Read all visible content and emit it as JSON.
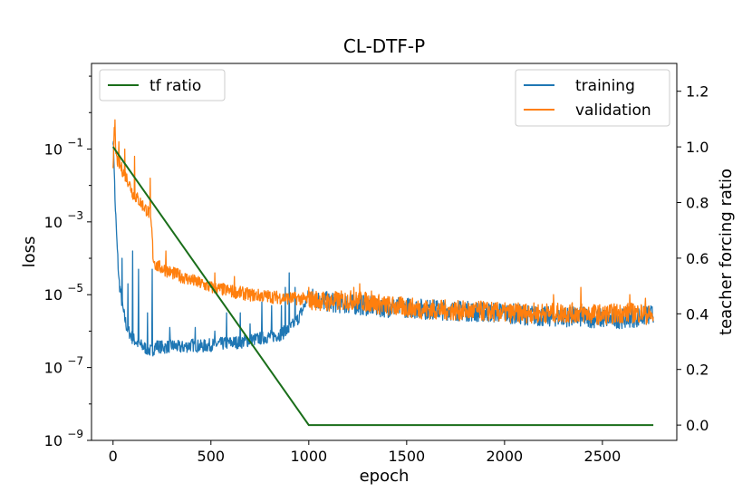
{
  "chart_data": {
    "type": "line",
    "title": "CL-DTF-P",
    "xlabel": "epoch",
    "ylabel": "loss",
    "y2label": "teacher forcing ratio",
    "xlim": [
      -110,
      2880
    ],
    "xticks": [
      0,
      500,
      1000,
      1500,
      2000,
      2500
    ],
    "yscale": "log",
    "ylim_log10": [
      -9,
      1.35
    ],
    "yticks_log10": [
      -9,
      -7,
      -5,
      -3,
      -1
    ],
    "ytick_labels": [
      "10",
      "10",
      "10",
      "10",
      "10"
    ],
    "ytick_exponents": [
      "−9",
      "−7",
      "−5",
      "−3",
      "−1"
    ],
    "y2lim": [
      -0.055,
      1.3
    ],
    "y2ticks": [
      0.0,
      0.2,
      0.4,
      0.6,
      0.8,
      1.0,
      1.2
    ],
    "y2tick_labels": [
      "0.0",
      "0.2",
      "0.4",
      "0.6",
      "0.8",
      "1.0",
      "1.2"
    ],
    "grid": false,
    "legend_left": {
      "placement": "upper-left",
      "entries": [
        "tf ratio"
      ]
    },
    "legend_right": {
      "placement": "upper-right",
      "entries": [
        "training",
        "validation"
      ]
    },
    "series": [
      {
        "name": "training",
        "axis": "left",
        "color": "#1f77b4",
        "x": [
          0,
          5,
          10,
          20,
          30,
          50,
          70,
          100,
          130,
          160,
          180,
          195,
          205,
          220,
          260,
          300,
          350,
          400,
          450,
          500,
          550,
          600,
          650,
          700,
          750,
          800,
          850,
          900,
          940,
          970,
          1000,
          1050,
          1100,
          1200,
          1300,
          1400,
          1500,
          1600,
          1700,
          1800,
          1900,
          2000,
          2100,
          2200,
          2300,
          2400,
          2500,
          2600,
          2700,
          2760
        ],
        "y_log10": [
          -0.7,
          -1.3,
          -2.4,
          -3.6,
          -4.6,
          -5.4,
          -5.9,
          -6.2,
          -6.35,
          -6.45,
          -6.5,
          -6.55,
          -6.5,
          -6.4,
          -6.45,
          -6.4,
          -6.45,
          -6.38,
          -6.42,
          -6.38,
          -6.35,
          -6.32,
          -6.3,
          -6.25,
          -6.2,
          -6.15,
          -6.1,
          -5.95,
          -5.7,
          -5.4,
          -5.0,
          -5.15,
          -5.2,
          -5.25,
          -5.3,
          -5.35,
          -5.35,
          -5.4,
          -5.42,
          -5.45,
          -5.48,
          -5.5,
          -5.55,
          -5.6,
          -5.6,
          -5.62,
          -5.65,
          -5.65,
          -5.6,
          -5.55
        ],
        "spikes": [
          {
            "x": 45,
            "y_log10": -4.0
          },
          {
            "x": 75,
            "y_log10": -4.7
          },
          {
            "x": 100,
            "y_log10": -3.8
          },
          {
            "x": 130,
            "y_log10": -4.3
          },
          {
            "x": 175,
            "y_log10": -5.5
          },
          {
            "x": 200,
            "y_log10": -4.3
          },
          {
            "x": 290,
            "y_log10": -5.9
          },
          {
            "x": 420,
            "y_log10": -5.9
          },
          {
            "x": 520,
            "y_log10": -6.0
          },
          {
            "x": 580,
            "y_log10": -5.5
          },
          {
            "x": 650,
            "y_log10": -5.5
          },
          {
            "x": 700,
            "y_log10": -5.8
          },
          {
            "x": 760,
            "y_log10": -5.2
          },
          {
            "x": 810,
            "y_log10": -5.3
          },
          {
            "x": 860,
            "y_log10": -5.3
          },
          {
            "x": 880,
            "y_log10": -4.8
          },
          {
            "x": 900,
            "y_log10": -4.4
          },
          {
            "x": 930,
            "y_log10": -4.8
          }
        ]
      },
      {
        "name": "validation",
        "axis": "left",
        "color": "#ff7f0e",
        "x": [
          0,
          5,
          10,
          20,
          40,
          60,
          80,
          100,
          130,
          160,
          190,
          200,
          205,
          220,
          300,
          400,
          500,
          600,
          700,
          800,
          900,
          950,
          1000,
          1050,
          1100,
          1200,
          1300,
          1400,
          1500,
          1600,
          1700,
          1800,
          1900,
          2000,
          2100,
          2200,
          2300,
          2400,
          2500,
          2600,
          2700,
          2760
        ],
        "y_log10": [
          -1.5,
          -0.5,
          -0.9,
          -1.3,
          -1.5,
          -1.7,
          -1.9,
          -2.2,
          -2.4,
          -2.6,
          -2.8,
          -3.4,
          -4.0,
          -4.2,
          -4.4,
          -4.6,
          -4.8,
          -4.9,
          -5.0,
          -5.05,
          -5.1,
          -5.1,
          -5.15,
          -5.15,
          -5.2,
          -5.15,
          -5.2,
          -5.3,
          -5.35,
          -5.4,
          -5.42,
          -5.45,
          -5.45,
          -5.5,
          -5.5,
          -5.5,
          -5.5,
          -5.5,
          -5.55,
          -5.5,
          -5.5,
          -5.6
        ],
        "spikes": [
          {
            "x": 10,
            "y_log10": -0.2
          },
          {
            "x": 30,
            "y_log10": -0.8
          },
          {
            "x": 60,
            "y_log10": -1.0
          },
          {
            "x": 110,
            "y_log10": -1.2
          },
          {
            "x": 190,
            "y_log10": -1.8
          },
          {
            "x": 270,
            "y_log10": -3.8
          },
          {
            "x": 520,
            "y_log10": -4.4
          },
          {
            "x": 620,
            "y_log10": -4.5
          },
          {
            "x": 1000,
            "y_log10": -4.8
          },
          {
            "x": 1230,
            "y_log10": -4.8
          },
          {
            "x": 1260,
            "y_log10": -4.7
          },
          {
            "x": 1320,
            "y_log10": -4.9
          },
          {
            "x": 2250,
            "y_log10": -5.0
          },
          {
            "x": 2390,
            "y_log10": -4.8
          },
          {
            "x": 2640,
            "y_log10": -5.0
          },
          {
            "x": 2720,
            "y_log10": -5.1
          }
        ]
      },
      {
        "name": "tf ratio",
        "axis": "right",
        "color": "#1a6e1a",
        "x": [
          0,
          1000,
          2760
        ],
        "y": [
          1.0,
          0.0,
          0.0
        ]
      }
    ]
  }
}
